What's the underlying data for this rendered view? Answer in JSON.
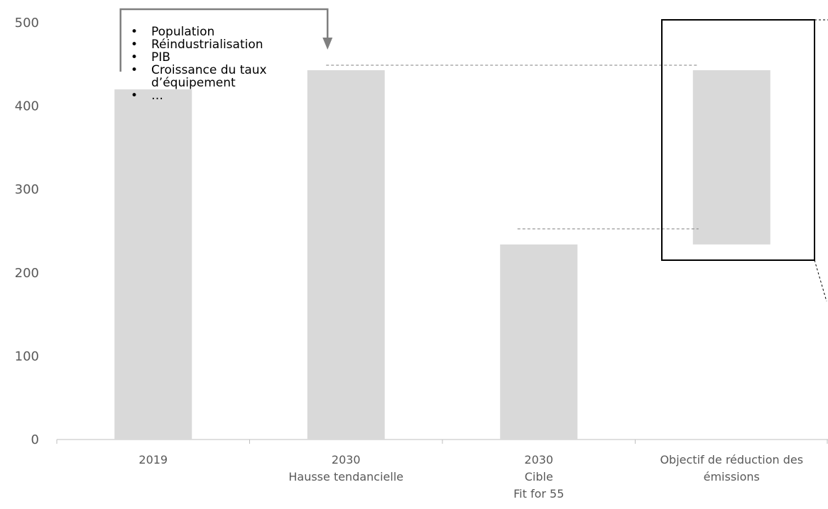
{
  "chart_data": {
    "type": "waterfall",
    "title": "",
    "xlabel": "",
    "ylabel": "",
    "ylim": [
      0,
      500
    ],
    "yticks": [
      0,
      100,
      200,
      300,
      400,
      500
    ],
    "gridlines": false,
    "bar_color": "#d9d9d9",
    "bars": [
      {
        "label_lines": [
          "2019"
        ],
        "base": 0,
        "value": 420
      },
      {
        "label_lines": [
          "2030",
          "Hausse tendancielle"
        ],
        "base": 0,
        "value": 443
      },
      {
        "label_lines": [
          "2030",
          "Cible",
          "Fit for 55"
        ],
        "base": 0,
        "value": 234
      },
      {
        "label_lines": [
          "Objectif de réduction des",
          "émissions"
        ],
        "base": 234,
        "value": 443
      }
    ]
  },
  "annotation": {
    "drivers": [
      "Population",
      "Réindustrialisation",
      "PIB",
      "Croissance du taux d’équipement",
      "…"
    ]
  },
  "colors": {
    "bar": "#d9d9d9",
    "arrow": "#7f7f7f",
    "axis": "#bfbfbf",
    "text": "#595959",
    "connector": "#7f7f7f",
    "highlight_box": "#000000"
  }
}
